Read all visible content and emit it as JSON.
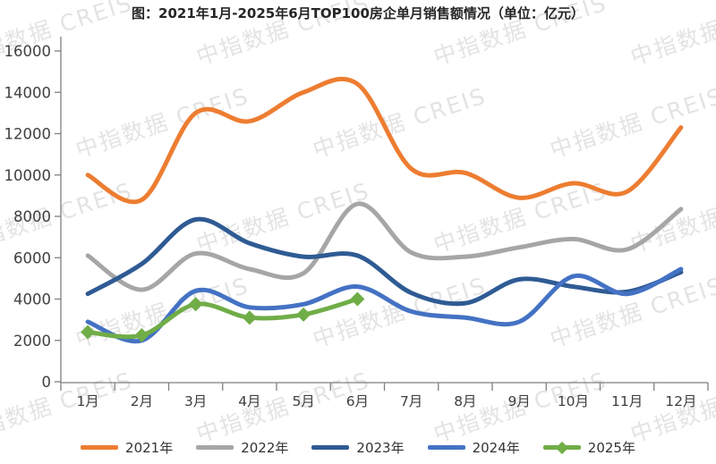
{
  "title": "图：2021年1月-2025年6月TOP100房企单月销售额情况（单位：亿元）",
  "watermark_text": "中指数据 CREIS",
  "colors": {
    "title_color": "#262626",
    "axis_color": "#7F7F7F",
    "tick_label_color": "#404040",
    "legend_label_color": "#333333",
    "watermark_color": "rgba(128,128,128,0.22)",
    "background": "#FFFFFF"
  },
  "chart_data": {
    "type": "line",
    "title": "图：2021年1月-2025年6月TOP100房企单月销售额情况（单位：亿元）",
    "unit": "亿元",
    "categories": [
      "1月",
      "2月",
      "3月",
      "4月",
      "5月",
      "6月",
      "7月",
      "8月",
      "9月",
      "10月",
      "11月",
      "12月"
    ],
    "series": [
      {
        "name": "2021年",
        "color": "#ED7D31",
        "marker": "none",
        "values": [
          10000,
          8800,
          13000,
          12600,
          14000,
          14400,
          10300,
          10100,
          8900,
          9600,
          9200,
          12300
        ]
      },
      {
        "name": "2022年",
        "color": "#A6A6A6",
        "marker": "none",
        "values": [
          6100,
          4450,
          6200,
          5450,
          5250,
          8600,
          6250,
          6050,
          6500,
          6900,
          6400,
          8350
        ]
      },
      {
        "name": "2023年",
        "color": "#2F5B94",
        "marker": "none",
        "values": [
          4250,
          5700,
          7850,
          6700,
          6050,
          6100,
          4300,
          3800,
          4950,
          4600,
          4350,
          5300
        ]
      },
      {
        "name": "2024年",
        "color": "#4472C4",
        "marker": "none",
        "values": [
          2900,
          2000,
          4400,
          3600,
          3750,
          4600,
          3400,
          3100,
          2900,
          5100,
          4250,
          5450
        ]
      },
      {
        "name": "2025年",
        "color": "#70AD47",
        "marker": "diamond",
        "values": [
          2400,
          2250,
          3750,
          3100,
          3250,
          4000
        ]
      }
    ],
    "ylim": [
      0,
      16000
    ],
    "ytick_step": 2000,
    "grid": false,
    "legend_position": "bottom",
    "line_width": 5
  }
}
